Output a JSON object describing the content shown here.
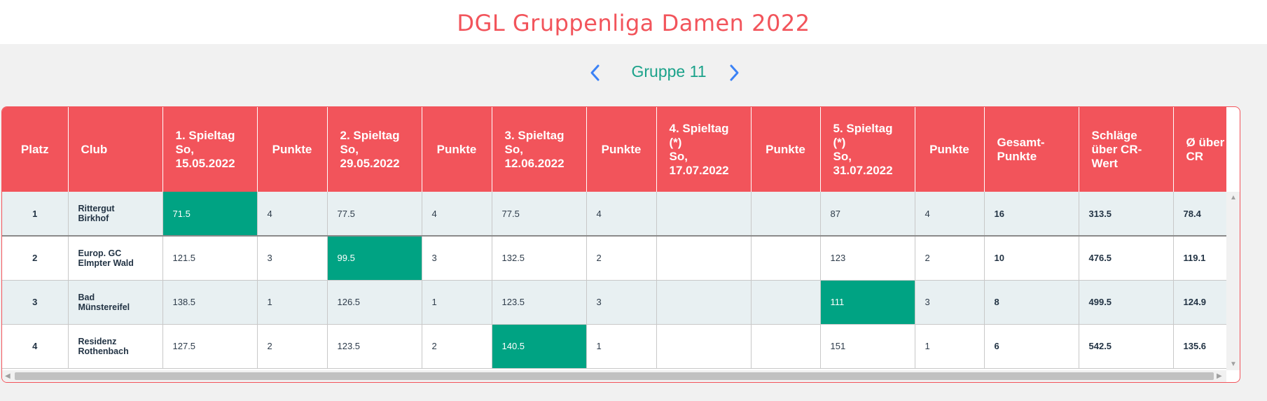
{
  "page": {
    "title": "DGL Gruppenliga Damen 2022"
  },
  "group_nav": {
    "label": "Gruppe 11",
    "prev_icon": "chevron-left-icon",
    "next_icon": "chevron-right-icon",
    "accent": "#3b82f6"
  },
  "colors": {
    "header": "#f2545b",
    "best": "#00a383",
    "group_label": "#1ba28a",
    "odd_row": "#e8f0f2"
  },
  "table": {
    "headers": [
      "Platz",
      "Club",
      "1. Spieltag\nSo,\n15.05.2022",
      "Punkte",
      "2. Spieltag\nSo,\n29.05.2022",
      "Punkte",
      "3. Spieltag\nSo,\n12.06.2022",
      "Punkte",
      "4. Spieltag\n(*)\nSo,\n17.07.2022",
      "Punkte",
      "5. Spieltag\n(*)\nSo,\n31.07.2022",
      "Punkte",
      "Gesamt-\nPunkte",
      "Schläge\nüber CR-\nWert",
      "Ø über\nCR"
    ],
    "rows": [
      {
        "platz": "1",
        "club": "Rittergut\nBirkhof",
        "s1": "71.5",
        "p1": "4",
        "s2": "77.5",
        "p2": "4",
        "s3": "77.5",
        "p3": "4",
        "s4": "",
        "p4": "",
        "s5": "87",
        "p5": "4",
        "gesamt": "16",
        "schlaege": "313.5",
        "avg": "78.4"
      },
      {
        "platz": "2",
        "club": "Europ. GC\nElmpter Wald",
        "s1": "121.5",
        "p1": "3",
        "s2": "99.5",
        "p2": "3",
        "s3": "132.5",
        "p3": "2",
        "s4": "",
        "p4": "",
        "s5": "123",
        "p5": "2",
        "gesamt": "10",
        "schlaege": "476.5",
        "avg": "119.1"
      },
      {
        "platz": "3",
        "club": "Bad\nMünstereifel",
        "s1": "138.5",
        "p1": "1",
        "s2": "126.5",
        "p2": "1",
        "s3": "123.5",
        "p3": "3",
        "s4": "",
        "p4": "",
        "s5": "111",
        "p5": "3",
        "gesamt": "8",
        "schlaege": "499.5",
        "avg": "124.9"
      },
      {
        "platz": "4",
        "club": "Residenz\nRothenbach",
        "s1": "127.5",
        "p1": "2",
        "s2": "123.5",
        "p2": "2",
        "s3": "140.5",
        "p3": "1",
        "s4": "",
        "p4": "",
        "s5": "151",
        "p5": "1",
        "gesamt": "6",
        "schlaege": "542.5",
        "avg": "135.6"
      }
    ]
  }
}
